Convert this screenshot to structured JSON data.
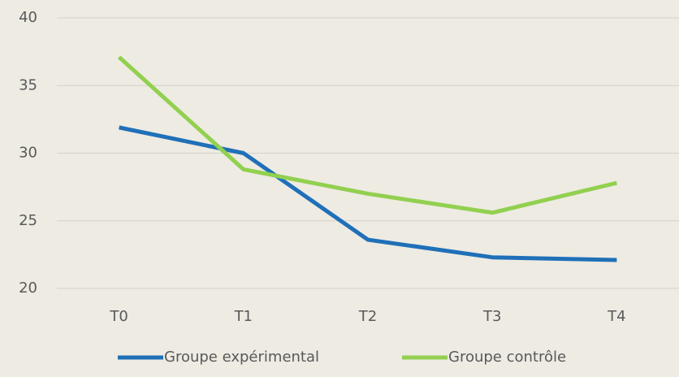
{
  "chart_data": {
    "type": "line",
    "categories": [
      "T0",
      "T1",
      "T2",
      "T3",
      "T4"
    ],
    "series": [
      {
        "name": "Groupe expérimental",
        "color": "#1f70b8",
        "values": [
          31.9,
          30,
          23.6,
          22.3,
          22.1
        ]
      },
      {
        "name": "Groupe contrôle",
        "color": "#92d050",
        "values": [
          37.1,
          28.8,
          27,
          25.6,
          27.8
        ]
      }
    ],
    "ylim": [
      20,
      40
    ],
    "yticks": [
      20,
      25,
      30,
      35,
      40
    ],
    "grid": true,
    "legend": "bottom"
  }
}
